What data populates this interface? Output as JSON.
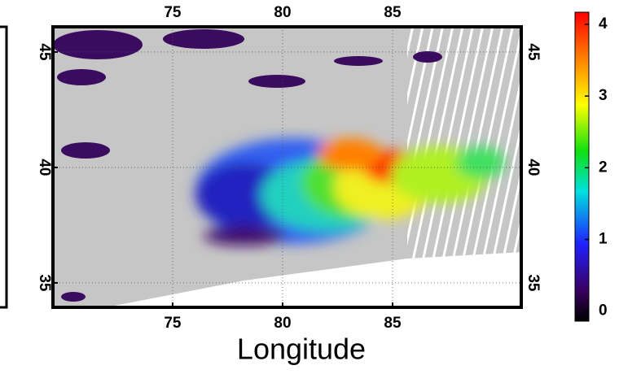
{
  "chart_data": {
    "type": "map",
    "xlabel": "Longitude",
    "xlim": [
      69.56,
      90.85
    ],
    "xticks": [
      75,
      80,
      85
    ],
    "ylim": [
      33.94,
      46.09
    ],
    "yticks": [
      35,
      40,
      45
    ],
    "grid": true,
    "colorbar": {
      "lim": [
        -0.14,
        4.17
      ],
      "ticks": [
        0,
        1,
        2,
        3,
        4
      ]
    }
  }
}
